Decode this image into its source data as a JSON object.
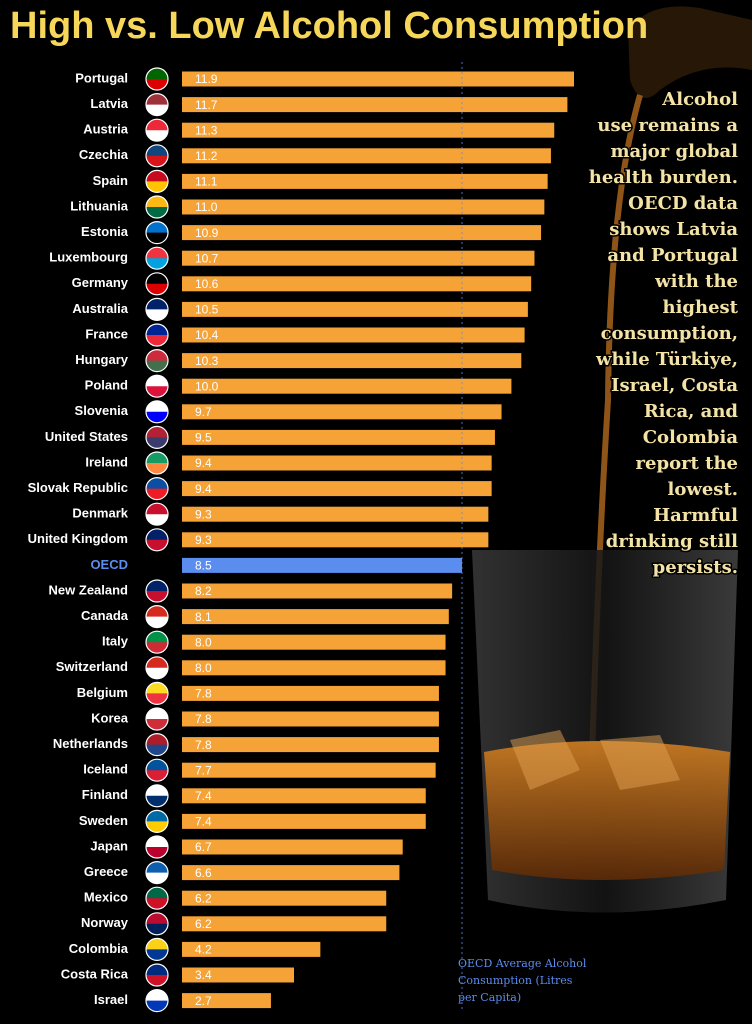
{
  "chart_data": {
    "type": "bar",
    "orientation": "horizontal",
    "title": "High vs. Low Alcohol Consumption",
    "categories": [
      "Portugal",
      "Latvia",
      "Austria",
      "Czechia",
      "Spain",
      "Lithuania",
      "Estonia",
      "Luxembourg",
      "Germany",
      "Australia",
      "France",
      "Hungary",
      "Poland",
      "Slovenia",
      "United States",
      "Ireland",
      "Slovak Republic",
      "Denmark",
      "United Kingdom",
      "OECD",
      "New Zealand",
      "Canada",
      "Italy",
      "Switzerland",
      "Belgium",
      "Korea",
      "Netherlands",
      "Iceland",
      "Finland",
      "Sweden",
      "Japan",
      "Greece",
      "Mexico",
      "Norway",
      "Colombia",
      "Costa Rica",
      "Israel"
    ],
    "values": [
      11.9,
      11.7,
      11.3,
      11.2,
      11.1,
      11.0,
      10.9,
      10.7,
      10.6,
      10.5,
      10.4,
      10.3,
      10.0,
      9.7,
      9.5,
      9.4,
      9.4,
      9.3,
      9.3,
      8.5,
      8.2,
      8.1,
      8.0,
      8.0,
      7.8,
      7.8,
      7.8,
      7.7,
      7.4,
      7.4,
      6.7,
      6.6,
      6.2,
      6.2,
      4.2,
      3.4,
      2.7
    ],
    "value_labels": [
      "11.9",
      "11.7",
      "11.3",
      "11.2",
      "11.1",
      "11.0",
      "10.9",
      "10.7",
      "10.6",
      "10.5",
      "10.4",
      "10.3",
      "10.0",
      "9.7",
      "9.5",
      "9.4",
      "9.4",
      "9.3",
      "9.3",
      "8.5",
      "8.2",
      "8.1",
      "8.0",
      "8.0",
      "7.8",
      "7.8",
      "7.8",
      "7.7",
      "7.4",
      "7.4",
      "6.7",
      "6.6",
      "6.2",
      "6.2",
      "4.2",
      "3.4",
      "2.7"
    ],
    "colors": [
      "#f5a237",
      "#f5a237",
      "#f5a237",
      "#f5a237",
      "#f5a237",
      "#f5a237",
      "#f5a237",
      "#f5a237",
      "#f5a237",
      "#f5a237",
      "#f5a237",
      "#f5a237",
      "#f5a237",
      "#f5a237",
      "#f5a237",
      "#f5a237",
      "#f5a237",
      "#f5a237",
      "#f5a237",
      "#5b8def",
      "#f5a237",
      "#f5a237",
      "#f5a237",
      "#f5a237",
      "#f5a237",
      "#f5a237",
      "#f5a237",
      "#f5a237",
      "#f5a237",
      "#f5a237",
      "#f5a237",
      "#f5a237",
      "#f5a237",
      "#f5a237",
      "#f5a237",
      "#f5a237",
      "#f5a237"
    ],
    "annotation": [
      "Alcohol",
      "use remains a",
      "major global",
      "health burden.",
      "OECD data",
      "shows Latvia",
      "and Portugal",
      "with the",
      "highest",
      "consumption,",
      "while Türkiye,",
      "Israel, Costa",
      "Rica, and",
      "Colombia",
      "report the",
      "lowest.",
      "Harmful",
      "drinking still",
      "persists."
    ],
    "reference_label": [
      "OECD Average Alcohol",
      "Consumption (Litres",
      "per Capita)"
    ]
  }
}
